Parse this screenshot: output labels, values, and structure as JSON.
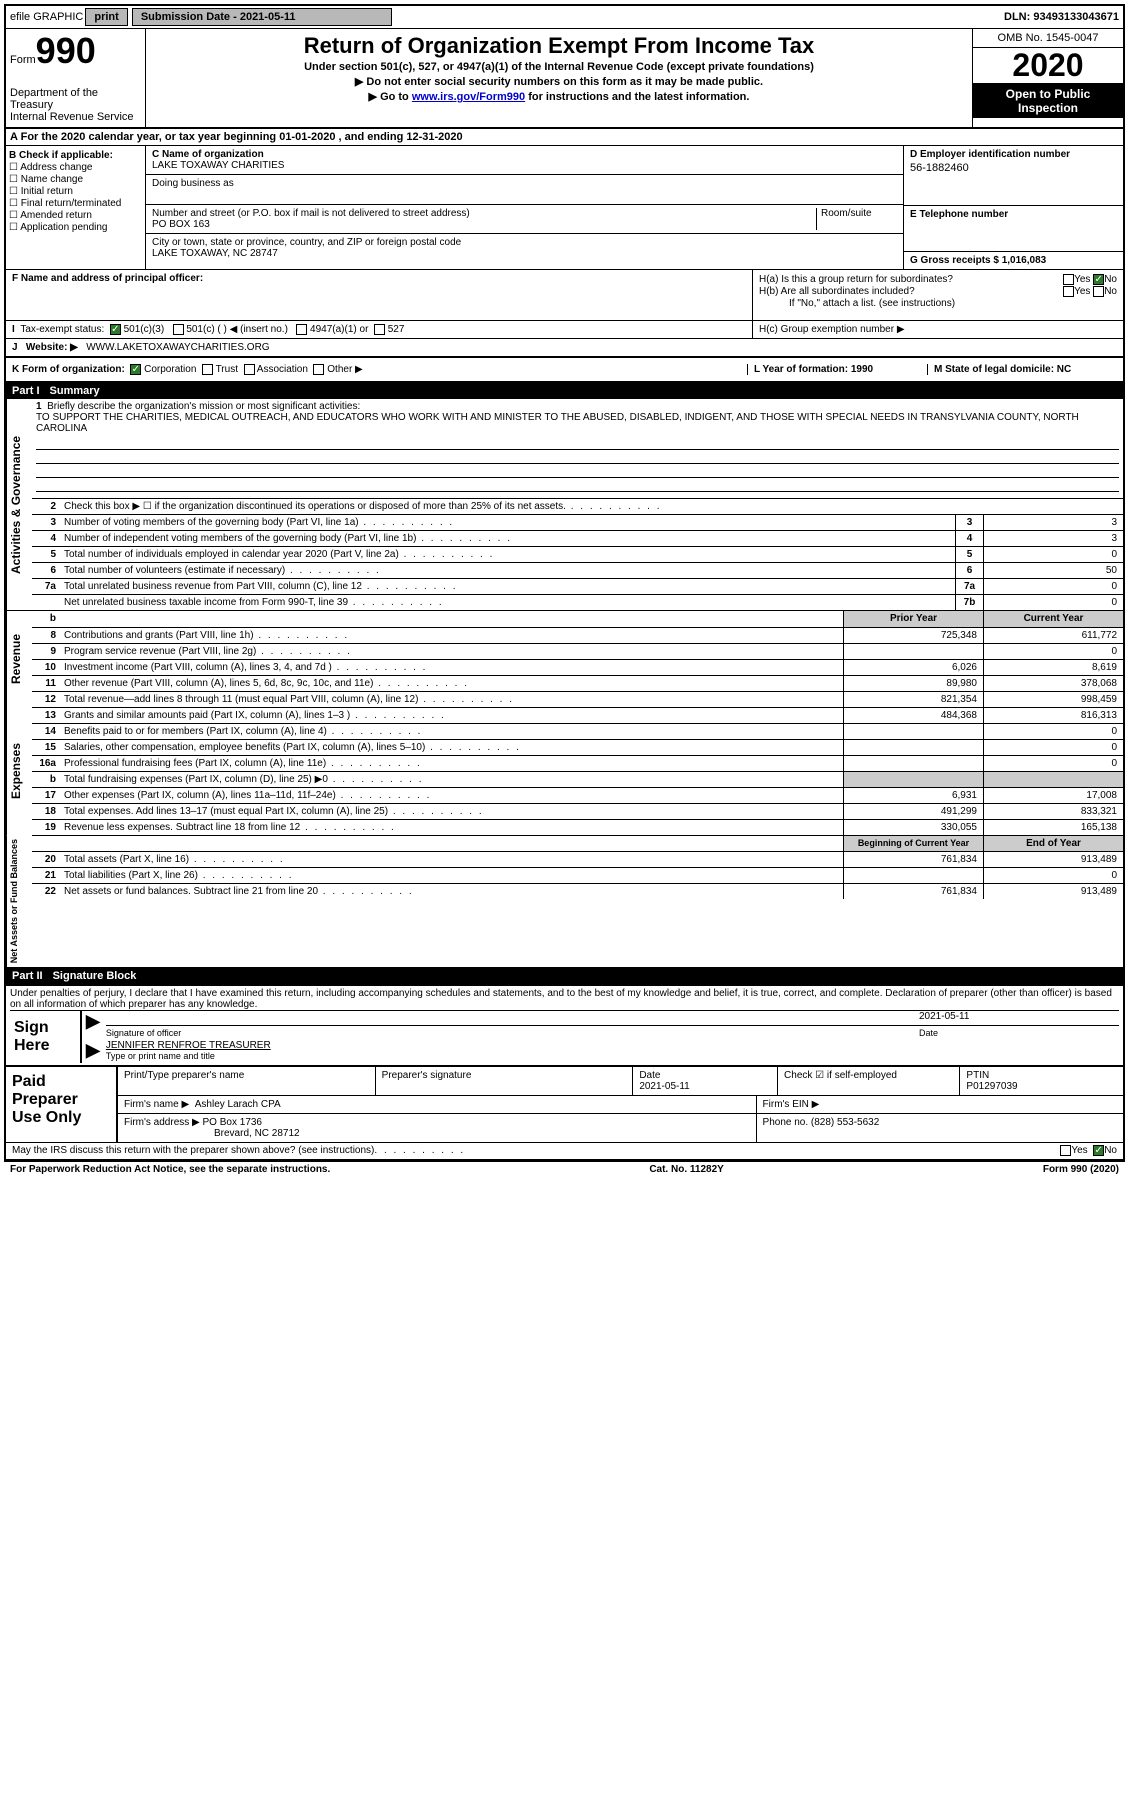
{
  "top": {
    "efile_label": "efile GRAPHIC",
    "print_btn": "print",
    "sub_date_label": "Submission Date - 2021-05-11",
    "dln": "DLN: 93493133043671"
  },
  "header": {
    "form_label": "Form",
    "form_num": "990",
    "dept": "Department of the Treasury\nInternal Revenue Service",
    "title": "Return of Organization Exempt From Income Tax",
    "section": "Under section 501(c), 527, or 4947(a)(1) of the Internal Revenue Code (except private foundations)",
    "note1": "▶ Do not enter social security numbers on this form as it may be made public.",
    "note2_pre": "▶ Go to ",
    "note2_link": "www.irs.gov/Form990",
    "note2_post": " for instructions and the latest information.",
    "omb": "OMB No. 1545-0047",
    "year": "2020",
    "open": "Open to Public Inspection"
  },
  "lineA": "For the 2020 calendar year, or tax year beginning 01-01-2020    , and ending 12-31-2020",
  "boxB": {
    "label": "B Check if applicable:",
    "items": [
      "Address change",
      "Name change",
      "Initial return",
      "Final return/terminated",
      "Amended return",
      "Application pending"
    ]
  },
  "boxC": {
    "name_label": "C Name of organization",
    "name": "LAKE TOXAWAY CHARITIES",
    "dba_label": "Doing business as",
    "addr_label": "Number and street (or P.O. box if mail is not delivered to street address)",
    "room_label": "Room/suite",
    "addr": "PO BOX 163",
    "city_label": "City or town, state or province, country, and ZIP or foreign postal code",
    "city": "LAKE TOXAWAY, NC  28747"
  },
  "boxD": {
    "label": "D Employer identification number",
    "value": "56-1882460"
  },
  "boxE": {
    "label": "E Telephone number"
  },
  "boxG": {
    "label": "G Gross receipts $ 1,016,083"
  },
  "boxF": {
    "label": "F  Name and address of principal officer:"
  },
  "boxH": {
    "a_label": "H(a)  Is this a group return for subordinates?",
    "a_yes": "Yes",
    "a_no": "No",
    "b_label": "H(b)  Are all subordinates included?",
    "note": "If \"No,\" attach a list. (see instructions)",
    "c_label": "H(c)  Group exemption number ▶"
  },
  "taxI": {
    "label": "Tax-exempt status:",
    "opt1": "501(c)(3)",
    "opt2": "501(c) (   ) ◀ (insert no.)",
    "opt3": "4947(a)(1) or",
    "opt4": "527"
  },
  "boxJ": {
    "label": "J",
    "website_label": "Website: ▶",
    "website": "WWW.LAKETOXAWAYCHARITIES.ORG"
  },
  "boxK": {
    "label": "K Form of organization:",
    "opts": [
      "Corporation",
      "Trust",
      "Association",
      "Other ▶"
    ]
  },
  "boxL": {
    "label": "L Year of formation: 1990"
  },
  "boxM": {
    "label": "M State of legal domicile: NC"
  },
  "part1": {
    "badge": "Part I",
    "title": "Summary"
  },
  "mission": {
    "num": "1",
    "label": "Briefly describe the organization's mission or most significant activities:",
    "text": "TO SUPPORT THE CHARITIES, MEDICAL OUTREACH, AND EDUCATORS WHO WORK WITH AND MINISTER TO THE ABUSED, DISABLED, INDIGENT, AND THOSE WITH SPECIAL NEEDS IN TRANSYLVANIA COUNTY, NORTH CAROLINA"
  },
  "governance": [
    {
      "n": "2",
      "t": "Check this box ▶ ☐ if the organization discontinued its operations or disposed of more than 25% of its net assets.",
      "nc": "",
      "v": ""
    },
    {
      "n": "3",
      "t": "Number of voting members of the governing body (Part VI, line 1a)",
      "nc": "3",
      "v": "3"
    },
    {
      "n": "4",
      "t": "Number of independent voting members of the governing body (Part VI, line 1b)",
      "nc": "4",
      "v": "3"
    },
    {
      "n": "5",
      "t": "Total number of individuals employed in calendar year 2020 (Part V, line 2a)",
      "nc": "5",
      "v": "0"
    },
    {
      "n": "6",
      "t": "Total number of volunteers (estimate if necessary)",
      "nc": "6",
      "v": "50"
    },
    {
      "n": "7a",
      "t": "Total unrelated business revenue from Part VIII, column (C), line 12",
      "nc": "7a",
      "v": "0"
    },
    {
      "n": "",
      "t": "Net unrelated business taxable income from Form 990-T, line 39",
      "nc": "7b",
      "v": "0"
    }
  ],
  "priorHeader": {
    "b": "b",
    "prior": "Prior Year",
    "current": "Current Year"
  },
  "revenue": [
    {
      "n": "8",
      "t": "Contributions and grants (Part VIII, line 1h)",
      "p": "725,348",
      "c": "611,772"
    },
    {
      "n": "9",
      "t": "Program service revenue (Part VIII, line 2g)",
      "p": "",
      "c": "0"
    },
    {
      "n": "10",
      "t": "Investment income (Part VIII, column (A), lines 3, 4, and 7d )",
      "p": "6,026",
      "c": "8,619"
    },
    {
      "n": "11",
      "t": "Other revenue (Part VIII, column (A), lines 5, 6d, 8c, 9c, 10c, and 11e)",
      "p": "89,980",
      "c": "378,068"
    },
    {
      "n": "12",
      "t": "Total revenue—add lines 8 through 11 (must equal Part VIII, column (A), line 12)",
      "p": "821,354",
      "c": "998,459"
    }
  ],
  "expenses": [
    {
      "n": "13",
      "t": "Grants and similar amounts paid (Part IX, column (A), lines 1–3 )",
      "p": "484,368",
      "c": "816,313"
    },
    {
      "n": "14",
      "t": "Benefits paid to or for members (Part IX, column (A), line 4)",
      "p": "",
      "c": "0"
    },
    {
      "n": "15",
      "t": "Salaries, other compensation, employee benefits (Part IX, column (A), lines 5–10)",
      "p": "",
      "c": "0"
    },
    {
      "n": "16a",
      "t": "Professional fundraising fees (Part IX, column (A), line 11e)",
      "p": "",
      "c": "0"
    },
    {
      "n": "b",
      "t": "Total fundraising expenses (Part IX, column (D), line 25) ▶0",
      "p": "",
      "c": "",
      "shaded": true
    },
    {
      "n": "17",
      "t": "Other expenses (Part IX, column (A), lines 11a–11d, 11f–24e)",
      "p": "6,931",
      "c": "17,008"
    },
    {
      "n": "18",
      "t": "Total expenses. Add lines 13–17 (must equal Part IX, column (A), line 25)",
      "p": "491,299",
      "c": "833,321"
    },
    {
      "n": "19",
      "t": "Revenue less expenses. Subtract line 18 from line 12",
      "p": "330,055",
      "c": "165,138"
    }
  ],
  "netHeader": {
    "prior": "Beginning of Current Year",
    "current": "End of Year"
  },
  "netassets": [
    {
      "n": "20",
      "t": "Total assets (Part X, line 16)",
      "p": "761,834",
      "c": "913,489"
    },
    {
      "n": "21",
      "t": "Total liabilities (Part X, line 26)",
      "p": "",
      "c": "0"
    },
    {
      "n": "22",
      "t": "Net assets or fund balances. Subtract line 21 from line 20",
      "p": "761,834",
      "c": "913,489"
    }
  ],
  "part2": {
    "badge": "Part II",
    "title": "Signature Block"
  },
  "penaltyText": "Under penalties of perjury, I declare that I have examined this return, including accompanying schedules and statements, and to the best of my knowledge and belief, it is true, correct, and complete. Declaration of preparer (other than officer) is based on all information of which preparer has any knowledge.",
  "sign": {
    "label": "Sign Here",
    "sig_label": "Signature of officer",
    "date_label": "Date",
    "date": "2021-05-11",
    "name": "JENNIFER RENFROE  TREASURER",
    "type_label": "Type or print name and title"
  },
  "paid": {
    "label": "Paid Preparer Use Only",
    "r1c1": "Print/Type preparer's name",
    "r1c2": "Preparer's signature",
    "r1c3": "Date\n2021-05-11",
    "r1c4": "Check ☑ if self-employed",
    "r1c5": "PTIN\nP01297039",
    "firm_label": "Firm's name    ▶",
    "firm": "Ashley Larach CPA",
    "ein_label": "Firm's EIN ▶",
    "addr_label": "Firm's address ▶",
    "addr": "PO Box 1736",
    "city": "Brevard, NC  28712",
    "phone_label": "Phone no. (828) 553-5632"
  },
  "discuss": {
    "text": "May the IRS discuss this return with the preparer shown above? (see instructions)",
    "yes": "Yes",
    "no": "No"
  },
  "footer": {
    "left": "For Paperwork Reduction Act Notice, see the separate instructions.",
    "center": "Cat. No. 11282Y",
    "right": "Form 990 (2020)"
  },
  "vlabels": {
    "gov": "Activities & Governance",
    "rev": "Revenue",
    "exp": "Expenses",
    "net": "Net Assets or Fund Balances"
  }
}
